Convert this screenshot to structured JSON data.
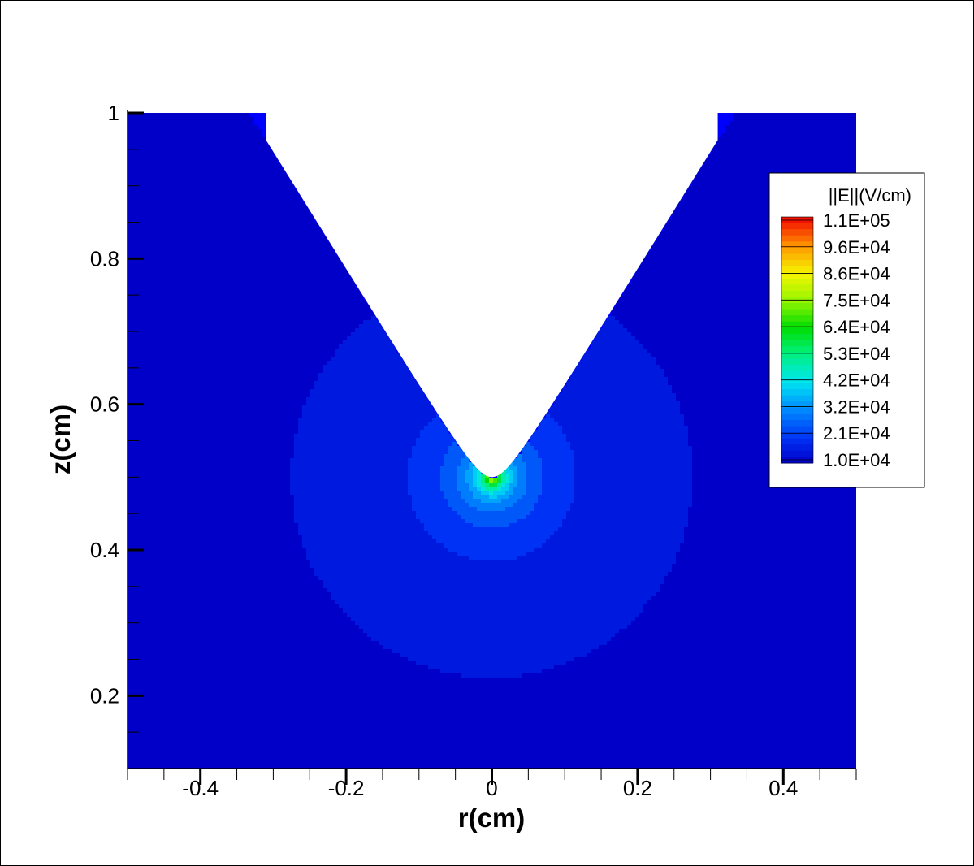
{
  "chart_data": {
    "type": "heatmap",
    "xlabel": "r(cm)",
    "ylabel": "z(cm)",
    "xlim": [
      -0.5,
      0.5
    ],
    "ylim": [
      0.1,
      1.0
    ],
    "x_ticks": [
      -0.4,
      -0.2,
      0,
      0.2,
      0.4
    ],
    "x_tick_labels": [
      "-0.4",
      "-0.2",
      "0",
      "0.2",
      "0.4"
    ],
    "y_ticks": [
      0.2,
      0.4,
      0.6,
      0.8,
      1.0
    ],
    "y_tick_labels": [
      "0.2",
      "0.4",
      "0.6",
      "0.8",
      "1"
    ],
    "field": {
      "name": "||E||",
      "unit": "V/cm",
      "min": 10000,
      "max": 110000,
      "peak_location": {
        "r": 0,
        "z": 0.5
      }
    },
    "legend": {
      "title": "||E||(V/cm)",
      "placement": "top-right",
      "labels": [
        "1.1E+05",
        "9.6E+04",
        "8.6E+04",
        "7.5E+04",
        "6.4E+04",
        "5.3E+04",
        "4.2E+04",
        "3.2E+04",
        "2.1E+04",
        "1.0E+04"
      ],
      "colors": [
        "#ff0000",
        "#ff5000",
        "#ffa000",
        "#ffff00",
        "#a0ff00",
        "#00e000",
        "#00ff80",
        "#00ffff",
        "#00a0ff",
        "#0000ff"
      ]
    },
    "electrode": {
      "tip": {
        "r": 0,
        "z": 0.5
      },
      "top_edges": [
        -0.31,
        0.31
      ]
    },
    "grid": false
  }
}
